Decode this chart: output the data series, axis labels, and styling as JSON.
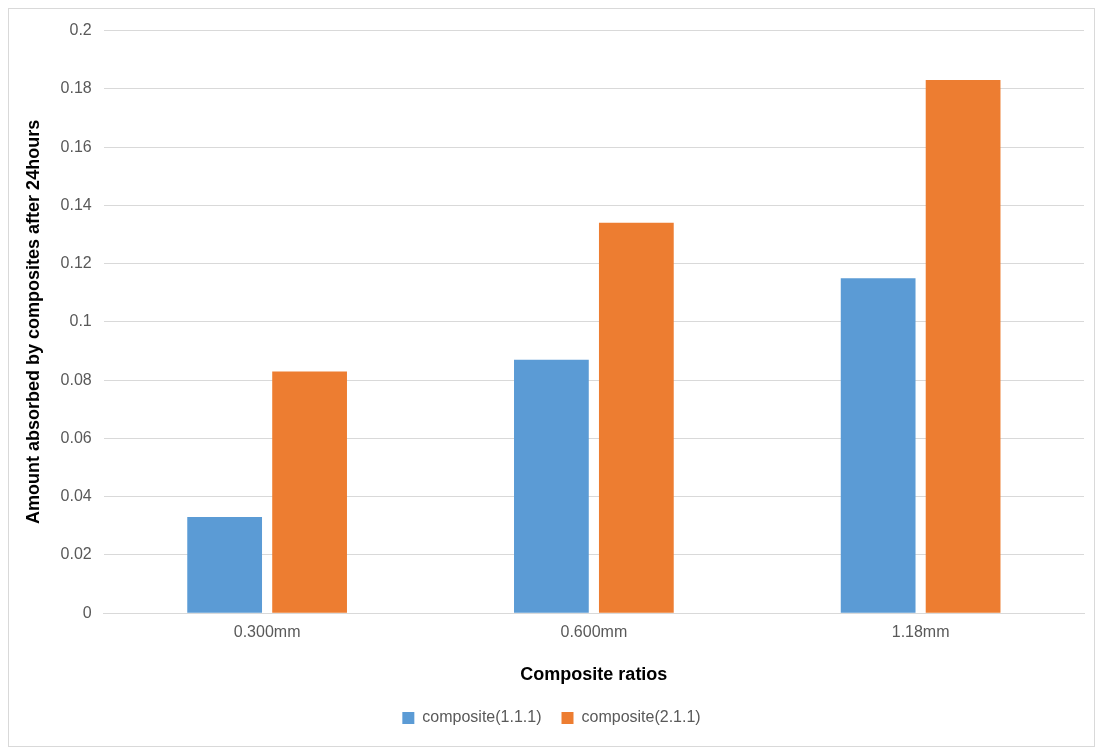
{
  "chart_data": {
    "type": "bar",
    "xlabel": "Composite ratios",
    "ylabel": "Amount absorbed by composites after 24hours",
    "categories": [
      "0.300mm",
      "0.600mm",
      "1.18mm"
    ],
    "series": [
      {
        "name": "composite(1.1.1)",
        "color": "#5b9bd5",
        "values": [
          0.033,
          0.087,
          0.115
        ]
      },
      {
        "name": "composite(2.1.1)",
        "color": "#ed7d31",
        "values": [
          0.083,
          0.134,
          0.183
        ]
      }
    ],
    "ylim": [
      0,
      0.2
    ],
    "yticks": [
      0,
      0.02,
      0.04,
      0.06,
      0.08,
      0.1,
      0.12,
      0.14,
      0.16,
      0.18,
      0.2
    ],
    "grid": "y",
    "legend": "bottom"
  }
}
